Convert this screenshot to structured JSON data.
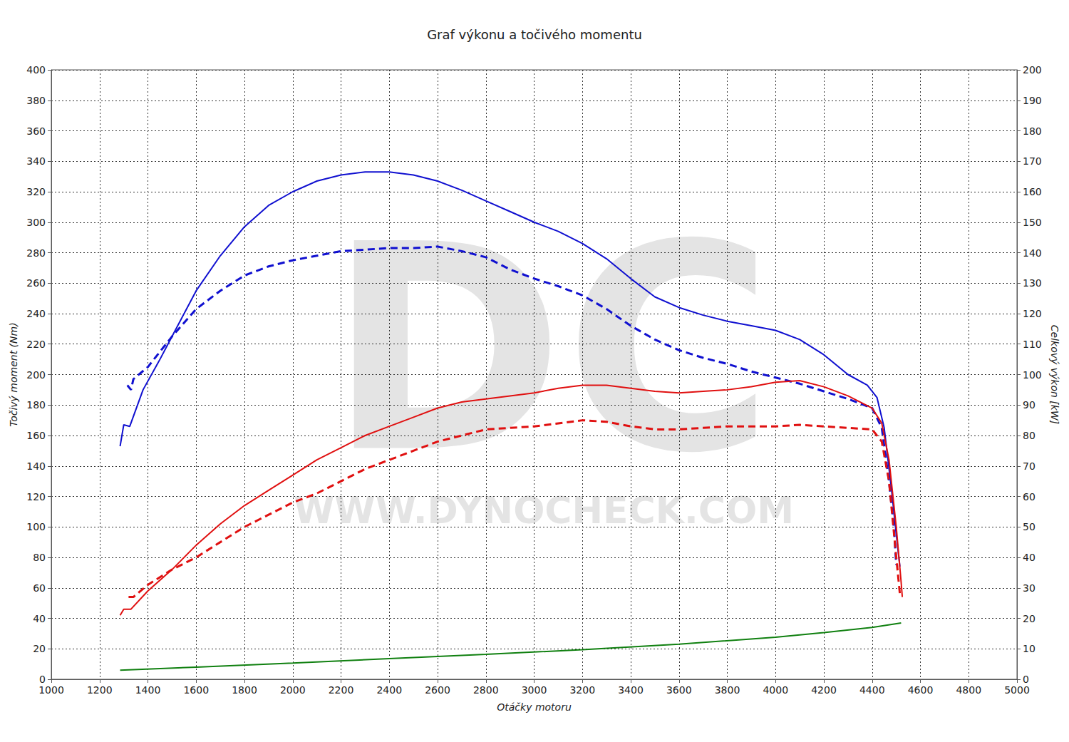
{
  "chart_data": {
    "type": "line",
    "title": "Graf výkonu a točivého momentu",
    "x_label": "Otáčky motoru",
    "y_label": "Točivý moment (Nm)",
    "y2_label": "Celkový výkon [kW]",
    "annotations": [
      "DC",
      "WWW.DYNOCHECK.COM"
    ],
    "grid": true,
    "xlim": [
      1000,
      5000
    ],
    "xticks": [
      1000,
      1200,
      1400,
      1600,
      1800,
      2000,
      2200,
      2400,
      2600,
      2800,
      3000,
      3200,
      3400,
      3600,
      3800,
      4000,
      4200,
      4400,
      4600,
      4800,
      5000
    ],
    "ylim": [
      0,
      400
    ],
    "yticks": [
      0,
      20,
      40,
      60,
      80,
      100,
      120,
      140,
      160,
      180,
      200,
      220,
      240,
      260,
      280,
      300,
      320,
      340,
      360,
      380,
      400
    ],
    "y2lim": [
      0,
      200
    ],
    "y2ticks": [
      0,
      10,
      20,
      30,
      40,
      50,
      60,
      70,
      80,
      90,
      100,
      110,
      120,
      130,
      140,
      150,
      160,
      170,
      180,
      190,
      200
    ],
    "series": [
      {
        "color": "#1010d0",
        "line_style": "solid",
        "x": [
          1285,
          1300,
          1325,
          1380,
          1450,
          1500,
          1600,
          1700,
          1800,
          1900,
          2000,
          2100,
          2200,
          2300,
          2400,
          2500,
          2600,
          2700,
          2800,
          2900,
          3000,
          3100,
          3200,
          3300,
          3400,
          3500,
          3600,
          3700,
          3800,
          3900,
          4000,
          4100,
          4200,
          4300,
          4380,
          4420,
          4450,
          4480,
          4500,
          4515
        ],
        "values": [
          153,
          167,
          166,
          190,
          210,
          225,
          255,
          278,
          297,
          311,
          320,
          327,
          331,
          333,
          333,
          331,
          327,
          321,
          314,
          307,
          300,
          294,
          286,
          276,
          263,
          251,
          244,
          239,
          235,
          232,
          229,
          223,
          213,
          200,
          193,
          185,
          165,
          125,
          95,
          74
        ]
      },
      {
        "color": "#1010d0",
        "line_style": "dashed",
        "x": [
          1315,
          1330,
          1340,
          1400,
          1500,
          1600,
          1700,
          1800,
          1900,
          2000,
          2100,
          2200,
          2300,
          2400,
          2500,
          2600,
          2700,
          2800,
          2900,
          3000,
          3100,
          3200,
          3300,
          3400,
          3500,
          3600,
          3700,
          3800,
          3900,
          4000,
          4100,
          4200,
          4300,
          4400,
          4440,
          4470,
          4490,
          4500
        ],
        "values": [
          193,
          190,
          197,
          205,
          225,
          243,
          255,
          265,
          271,
          275,
          278,
          281,
          282,
          283,
          283,
          284,
          281,
          277,
          269,
          263,
          258,
          252,
          243,
          232,
          223,
          216,
          211,
          207,
          202,
          198,
          194,
          189,
          184,
          178,
          165,
          130,
          100,
          75
        ]
      },
      {
        "color": "#e01010",
        "line_style": "solid",
        "axis": "y2",
        "x": [
          1285,
          1300,
          1330,
          1400,
          1500,
          1600,
          1700,
          1800,
          1900,
          2000,
          2100,
          2200,
          2300,
          2400,
          2500,
          2600,
          2700,
          2800,
          2900,
          3000,
          3100,
          3200,
          3300,
          3400,
          3500,
          3600,
          3700,
          3800,
          3900,
          4000,
          4100,
          4200,
          4300,
          4400,
          4440,
          4470,
          4500,
          4520,
          4525
        ],
        "values": [
          21,
          23,
          23,
          29,
          36,
          44,
          51,
          57,
          62,
          67,
          72,
          76,
          80,
          83,
          86,
          89,
          91,
          92,
          93,
          94,
          95.5,
          96.5,
          96.5,
          95.5,
          94.5,
          94,
          94.5,
          95,
          96,
          97.5,
          98,
          96,
          93,
          89,
          84,
          72,
          50,
          32,
          27
        ]
      },
      {
        "color": "#e01010",
        "line_style": "dashed",
        "axis": "y2",
        "x": [
          1320,
          1340,
          1400,
          1500,
          1600,
          1700,
          1800,
          1900,
          2000,
          2100,
          2200,
          2300,
          2400,
          2500,
          2600,
          2700,
          2800,
          2900,
          3000,
          3100,
          3200,
          3300,
          3400,
          3500,
          3600,
          3700,
          3800,
          3900,
          4000,
          4100,
          4200,
          4300,
          4400,
          4440,
          4470,
          4500,
          4515
        ],
        "values": [
          27,
          27,
          31,
          36,
          40,
          45,
          50,
          54,
          58,
          61,
          65,
          69,
          72,
          75,
          78,
          80,
          82,
          82.5,
          83,
          84,
          85,
          84.5,
          83,
          82,
          82,
          82.5,
          83,
          83,
          83,
          83.5,
          83,
          82.5,
          82,
          78,
          65,
          40,
          28
        ]
      },
      {
        "color": "#108010",
        "line_style": "solid",
        "axis": "y2",
        "x": [
          1285,
          1600,
          2000,
          2400,
          2800,
          3200,
          3600,
          4000,
          4200,
          4400,
          4520
        ],
        "values": [
          3,
          4,
          5.3,
          6.8,
          8.2,
          9.7,
          11.5,
          13.8,
          15.3,
          17,
          18.5
        ]
      }
    ]
  }
}
